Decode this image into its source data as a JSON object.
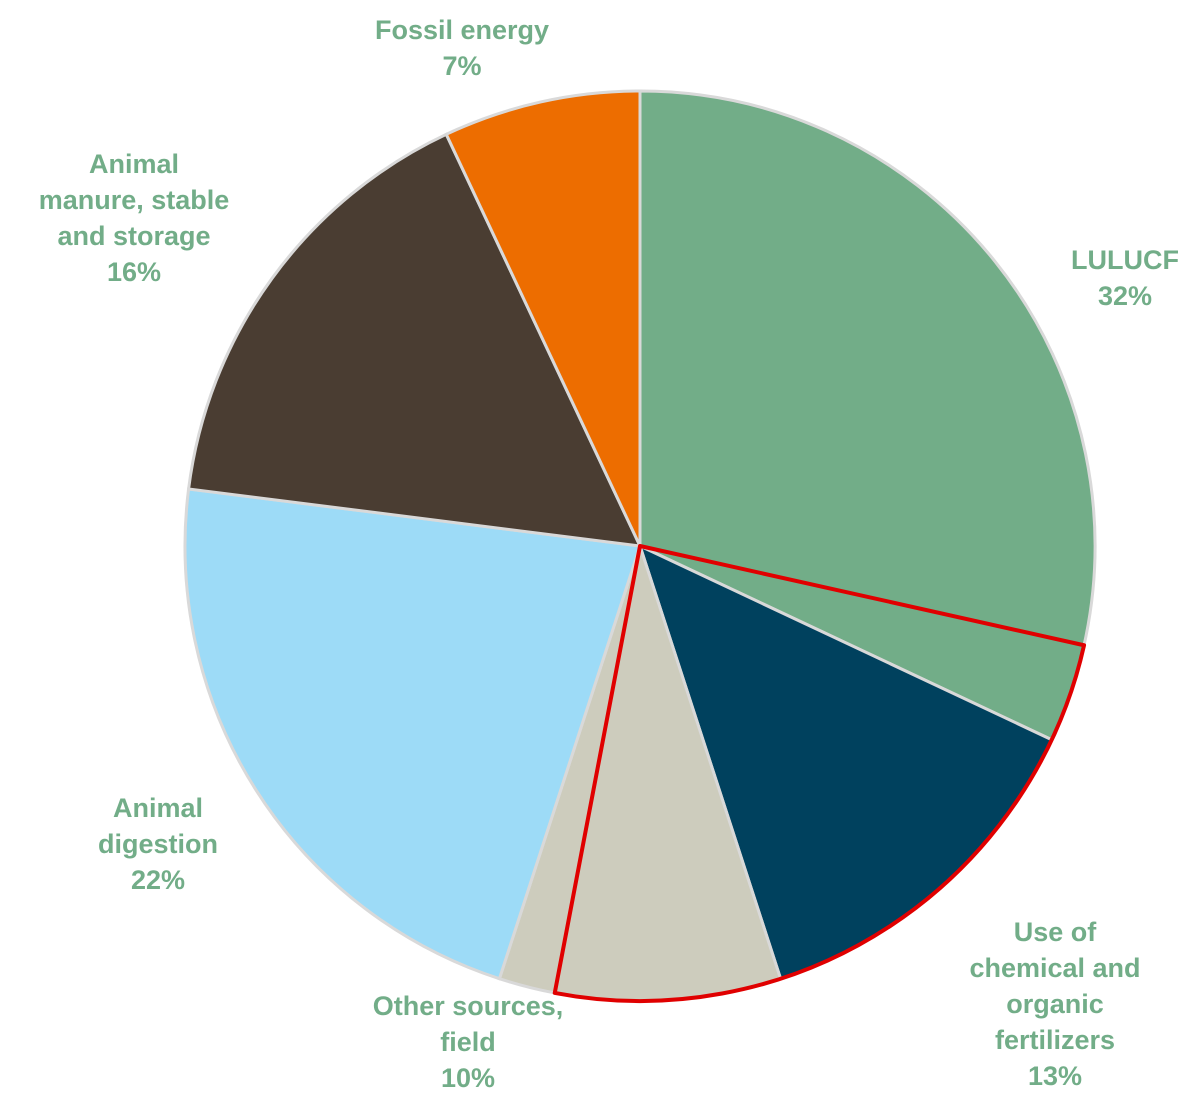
{
  "chart_data": {
    "type": "pie",
    "title": "",
    "start_angle_deg": 0,
    "direction": "clockwise",
    "slices": [
      {
        "label": "LULUCF",
        "pct_label": "32%",
        "value": 28.5,
        "color": "#72AD88"
      },
      {
        "label": "LULUCF",
        "pct_label": "",
        "value": 3.5,
        "color": "#72AD88",
        "highlight": true
      },
      {
        "label": "Use of chemical and organic fertilizers",
        "pct_label": "13%",
        "value": 13,
        "color": "#00415E",
        "highlight": true
      },
      {
        "label": "Other sources, field",
        "pct_label": "",
        "value": 8,
        "color": "#CDCCBD",
        "highlight": true
      },
      {
        "label": "Other sources, field",
        "pct_label": "10%",
        "value": 2,
        "color": "#CDCCBD"
      },
      {
        "label": "Animal digestion",
        "pct_label": "22%",
        "value": 22,
        "color": "#9DDBF7"
      },
      {
        "label": "Animal manure, stable and storage",
        "pct_label": "16%",
        "value": 16,
        "color": "#4A3D32"
      },
      {
        "label": "Fossil energy",
        "pct_label": "7%",
        "value": 7,
        "color": "#ED6D00"
      }
    ],
    "highlight_outline_color": "#E00000",
    "slice_border_color": "#D9D9D9",
    "labels": [
      {
        "lines": [
          "Fossil energy",
          "7%"
        ]
      },
      {
        "lines": [
          "Animal",
          "manure, stable",
          "and storage",
          "16%"
        ]
      },
      {
        "lines": [
          "LULUCF",
          "32%"
        ]
      },
      {
        "lines": [
          "Animal",
          "digestion",
          "22%"
        ]
      },
      {
        "lines": [
          "Other sources,",
          "field",
          "10%"
        ]
      },
      {
        "lines": [
          "Use of",
          "chemical and",
          "organic",
          "fertilizers",
          "13%"
        ]
      }
    ],
    "label_color": "#72AD88"
  }
}
